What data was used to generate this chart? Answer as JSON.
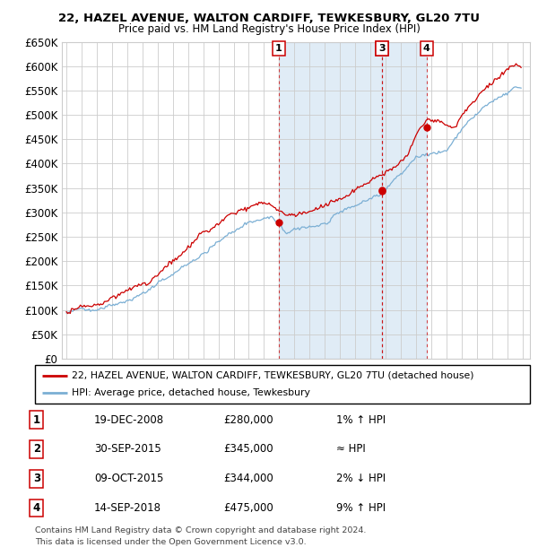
{
  "title1": "22, HAZEL AVENUE, WALTON CARDIFF, TEWKESBURY, GL20 7TU",
  "title2": "Price paid vs. HM Land Registry's House Price Index (HPI)",
  "ylim": [
    0,
    650000
  ],
  "yticks": [
    0,
    50000,
    100000,
    150000,
    200000,
    250000,
    300000,
    350000,
    400000,
    450000,
    500000,
    550000,
    600000,
    650000
  ],
  "ytick_labels": [
    "£0",
    "£50K",
    "£100K",
    "£150K",
    "£200K",
    "£250K",
    "£300K",
    "£350K",
    "£400K",
    "£450K",
    "£500K",
    "£550K",
    "£600K",
    "£650K"
  ],
  "xlim_start": 1994.7,
  "xlim_end": 2025.5,
  "transactions": [
    {
      "num": 1,
      "year": 2008.96,
      "price": 280000,
      "date": "19-DEC-2008",
      "label": "1% ↑ HPI"
    },
    {
      "num": 2,
      "year": 2015.748,
      "price": 345000,
      "date": "30-SEP-2015",
      "label": "≈ HPI"
    },
    {
      "num": 3,
      "year": 2015.784,
      "price": 344000,
      "date": "09-OCT-2015",
      "label": "2% ↓ HPI"
    },
    {
      "num": 4,
      "year": 2018.71,
      "price": 475000,
      "date": "14-SEP-2018",
      "label": "9% ↑ HPI"
    }
  ],
  "legend_line1": "22, HAZEL AVENUE, WALTON CARDIFF, TEWKESBURY, GL20 7TU (detached house)",
  "legend_line2": "HPI: Average price, detached house, Tewkesbury",
  "table_rows": [
    [
      "1",
      "19-DEC-2008",
      "£280,000",
      "1% ↑ HPI"
    ],
    [
      "2",
      "30-SEP-2015",
      "£345,000",
      "≈ HPI"
    ],
    [
      "3",
      "09-OCT-2015",
      "£344,000",
      "2% ↓ HPI"
    ],
    [
      "4",
      "14-SEP-2018",
      "£475,000",
      "9% ↑ HPI"
    ]
  ],
  "footer1": "Contains HM Land Registry data © Crown copyright and database right 2024.",
  "footer2": "This data is licensed under the Open Government Licence v3.0.",
  "red_color": "#cc0000",
  "blue_color": "#7bafd4",
  "shading_color": "#cce0f0",
  "grid_color": "#cccccc",
  "background_color": "#ffffff",
  "box_color": "#cc0000"
}
